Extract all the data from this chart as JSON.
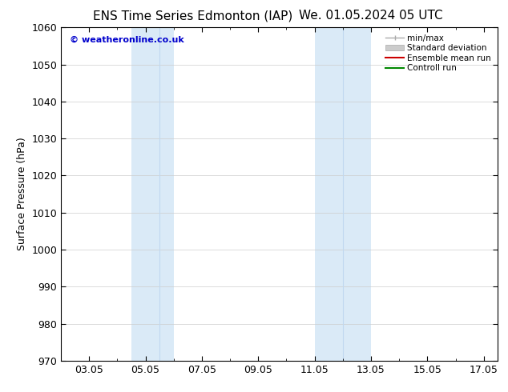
{
  "title_left": "ENS Time Series Edmonton (IAP)",
  "title_right": "We. 01.05.2024 05 UTC",
  "ylabel": "Surface Pressure (hPa)",
  "xlim": [
    2.0,
    17.5
  ],
  "ylim": [
    970,
    1060
  ],
  "yticks": [
    970,
    980,
    990,
    1000,
    1010,
    1020,
    1030,
    1040,
    1050,
    1060
  ],
  "xtick_labels": [
    "03.05",
    "05.05",
    "07.05",
    "09.05",
    "11.05",
    "13.05",
    "15.05",
    "17.05"
  ],
  "xtick_positions": [
    3.0,
    5.0,
    7.0,
    9.0,
    11.0,
    13.0,
    15.0,
    17.0
  ],
  "shaded_regions": [
    {
      "x_start": 4.5,
      "x_end": 6.0,
      "color": "#daeaf7"
    },
    {
      "x_start": 11.0,
      "x_end": 13.0,
      "color": "#daeaf7"
    }
  ],
  "inner_vlines": [
    5.5,
    12.0
  ],
  "watermark": "© weatheronline.co.uk",
  "watermark_color": "#0000cc",
  "legend_entries": [
    {
      "label": "min/max"
    },
    {
      "label": "Standard deviation"
    },
    {
      "label": "Ensemble mean run"
    },
    {
      "label": "Controll run"
    }
  ],
  "legend_colors": [
    "#aaaaaa",
    "#cccccc",
    "#cc0000",
    "#008800"
  ],
  "bg_color": "#ffffff",
  "tick_fontsize": 9,
  "label_fontsize": 9,
  "title_fontsize": 11
}
